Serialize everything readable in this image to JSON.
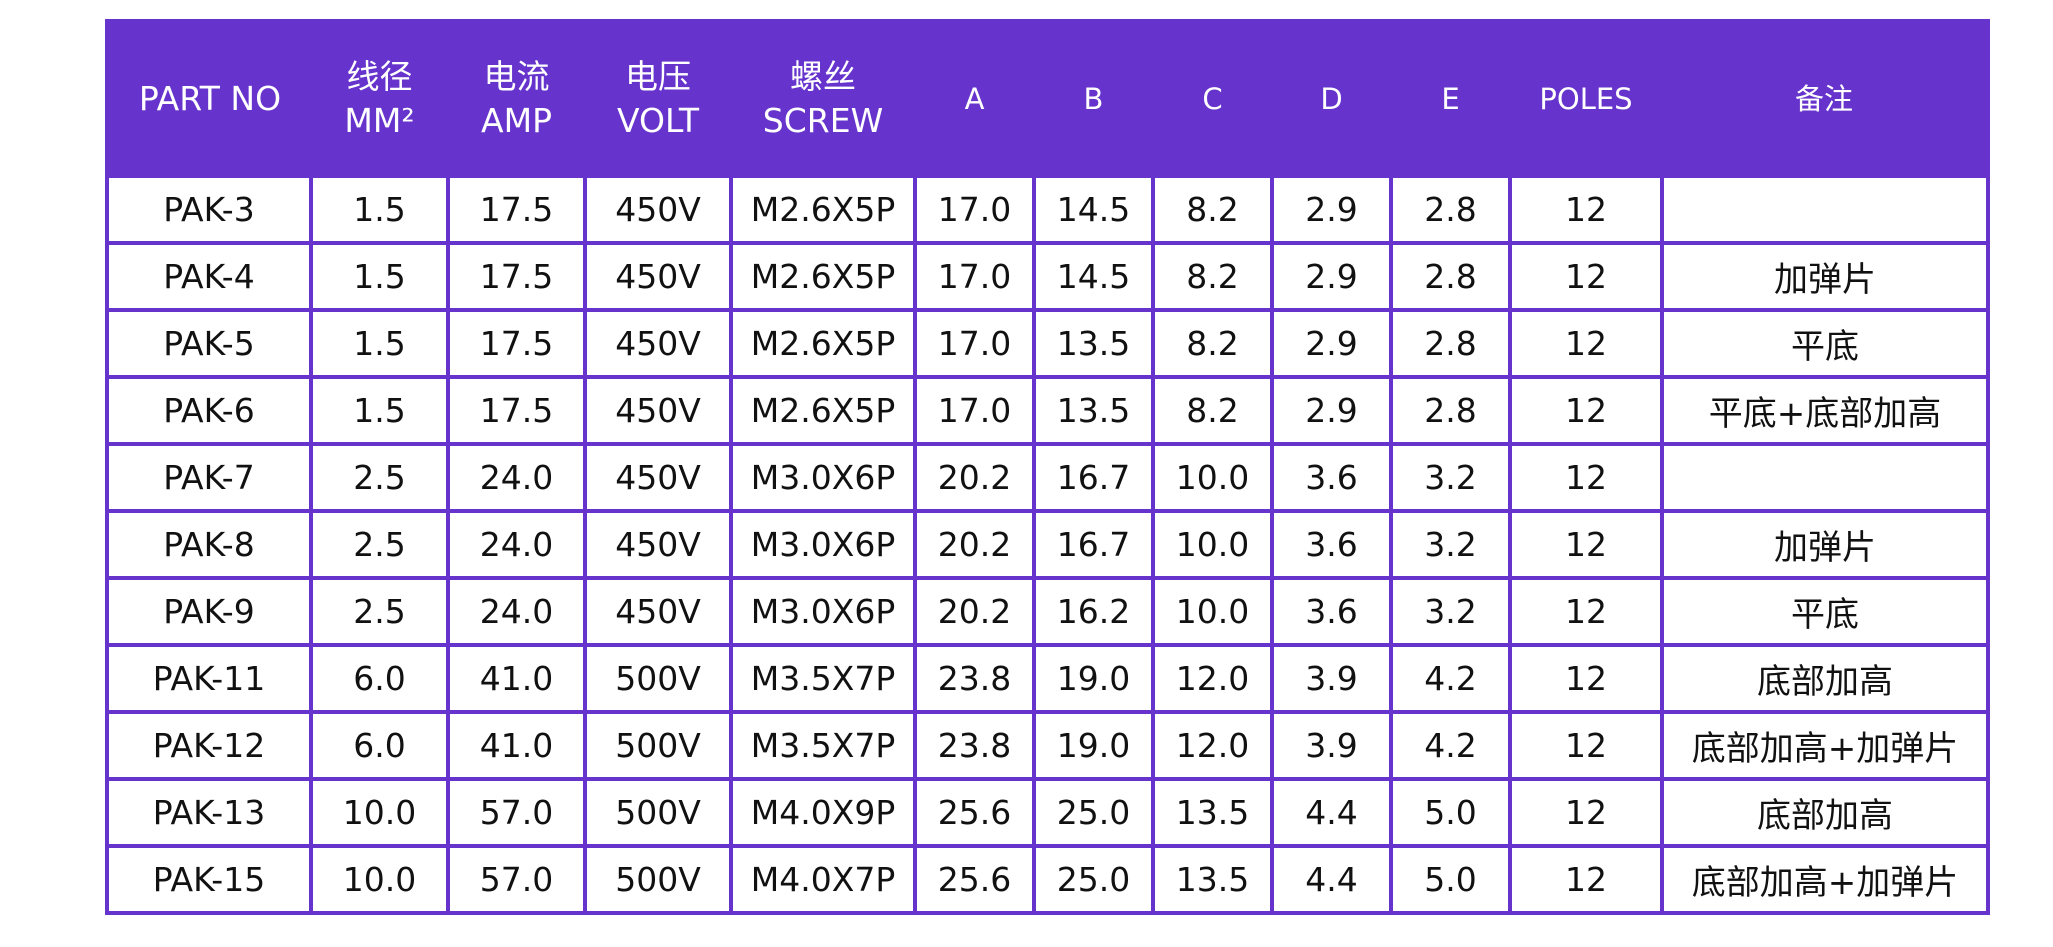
{
  "theme": {
    "header_bg": "#6633cc",
    "border": "#6633cc",
    "header_text": "#ffffff",
    "cell_bg": "#ffffff",
    "cell_text": "#111111"
  },
  "header": {
    "part_no": "PART NO",
    "wire_cn": "线径",
    "wire_unit": "MM²",
    "current_cn": "电流",
    "current_unit": "AMP",
    "voltage_cn": "电压",
    "voltage_unit": "VOLT",
    "screw_cn": "螺丝",
    "screw_en": "SCREW",
    "a": "A",
    "b": "B",
    "c": "C",
    "d": "D",
    "e": "E",
    "poles": "POLES",
    "remark": "备注"
  },
  "rows": [
    {
      "part": "PAK-3",
      "wire": "1.5",
      "amp": "17.5",
      "volt": "450V",
      "screw": "M2.6X5P",
      "a": "17.0",
      "b": "14.5",
      "c": "8.2",
      "d": "2.9",
      "e": "2.8",
      "poles": "12",
      "remark": ""
    },
    {
      "part": "PAK-4",
      "wire": "1.5",
      "amp": "17.5",
      "volt": "450V",
      "screw": "M2.6X5P",
      "a": "17.0",
      "b": "14.5",
      "c": "8.2",
      "d": "2.9",
      "e": "2.8",
      "poles": "12",
      "remark": "加弹片"
    },
    {
      "part": "PAK-5",
      "wire": "1.5",
      "amp": "17.5",
      "volt": "450V",
      "screw": "M2.6X5P",
      "a": "17.0",
      "b": "13.5",
      "c": "8.2",
      "d": "2.9",
      "e": "2.8",
      "poles": "12",
      "remark": "平底"
    },
    {
      "part": "PAK-6",
      "wire": "1.5",
      "amp": "17.5",
      "volt": "450V",
      "screw": "M2.6X5P",
      "a": "17.0",
      "b": "13.5",
      "c": "8.2",
      "d": "2.9",
      "e": "2.8",
      "poles": "12",
      "remark": "平底+底部加高"
    },
    {
      "part": "PAK-7",
      "wire": "2.5",
      "amp": "24.0",
      "volt": "450V",
      "screw": "M3.0X6P",
      "a": "20.2",
      "b": "16.7",
      "c": "10.0",
      "d": "3.6",
      "e": "3.2",
      "poles": "12",
      "remark": ""
    },
    {
      "part": "PAK-8",
      "wire": "2.5",
      "amp": "24.0",
      "volt": "450V",
      "screw": "M3.0X6P",
      "a": "20.2",
      "b": "16.7",
      "c": "10.0",
      "d": "3.6",
      "e": "3.2",
      "poles": "12",
      "remark": "加弹片"
    },
    {
      "part": "PAK-9",
      "wire": "2.5",
      "amp": "24.0",
      "volt": "450V",
      "screw": "M3.0X6P",
      "a": "20.2",
      "b": "16.2",
      "c": "10.0",
      "d": "3.6",
      "e": "3.2",
      "poles": "12",
      "remark": "平底"
    },
    {
      "part": "PAK-11",
      "wire": "6.0",
      "amp": "41.0",
      "volt": "500V",
      "screw": "M3.5X7P",
      "a": "23.8",
      "b": "19.0",
      "c": "12.0",
      "d": "3.9",
      "e": "4.2",
      "poles": "12",
      "remark": "底部加高"
    },
    {
      "part": "PAK-12",
      "wire": "6.0",
      "amp": "41.0",
      "volt": "500V",
      "screw": "M3.5X7P",
      "a": "23.8",
      "b": "19.0",
      "c": "12.0",
      "d": "3.9",
      "e": "4.2",
      "poles": "12",
      "remark": "底部加高+加弹片"
    },
    {
      "part": "PAK-13",
      "wire": "10.0",
      "amp": "57.0",
      "volt": "500V",
      "screw": "M4.0X9P",
      "a": "25.6",
      "b": "25.0",
      "c": "13.5",
      "d": "4.4",
      "e": "5.0",
      "poles": "12",
      "remark": "底部加高"
    },
    {
      "part": "PAK-15",
      "wire": "10.0",
      "amp": "57.0",
      "volt": "500V",
      "screw": "M4.0X7P",
      "a": "25.6",
      "b": "25.0",
      "c": "13.5",
      "d": "4.4",
      "e": "5.0",
      "poles": "12",
      "remark": "底部加高+加弹片"
    }
  ]
}
